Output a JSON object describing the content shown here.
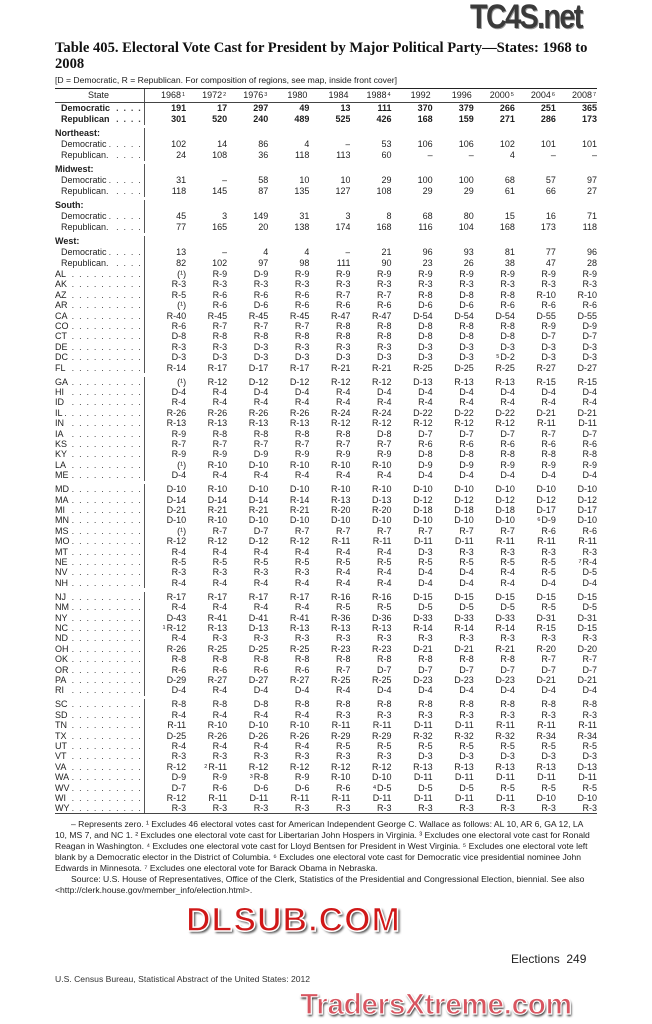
{
  "title": "Table 405. Electoral Vote Cast for President by Major Political Party—States: 1968 to 2008",
  "subtitle": "[D = Democratic, R = Republican. For composition of regions, see map, inside front cover]",
  "header": {
    "state_label": "State",
    "years": [
      {
        "year": "1968",
        "fn": "1"
      },
      {
        "year": "1972",
        "fn": "2"
      },
      {
        "year": "1976",
        "fn": "3"
      },
      {
        "year": "1980",
        "fn": ""
      },
      {
        "year": "1984",
        "fn": ""
      },
      {
        "year": "1988",
        "fn": "4"
      },
      {
        "year": "1992",
        "fn": ""
      },
      {
        "year": "1996",
        "fn": ""
      },
      {
        "year": "2000",
        "fn": "5"
      },
      {
        "year": "2004",
        "fn": "6"
      },
      {
        "year": "2008",
        "fn": "7"
      }
    ]
  },
  "totals": [
    {
      "label": "Democratic",
      "values": [
        "191",
        "17",
        "297",
        "49",
        "13",
        "111",
        "370",
        "379",
        "266",
        "251",
        "365"
      ]
    },
    {
      "label": "Republican",
      "values": [
        "301",
        "520",
        "240",
        "489",
        "525",
        "426",
        "168",
        "159",
        "271",
        "286",
        "173"
      ]
    }
  ],
  "regions": [
    {
      "name": "Northeast:",
      "rows": [
        {
          "label": "Democratic",
          "values": [
            "102",
            "14",
            "86",
            "4",
            "–",
            "53",
            "106",
            "106",
            "102",
            "101",
            "101"
          ]
        },
        {
          "label": "Republican.",
          "values": [
            "24",
            "108",
            "36",
            "118",
            "113",
            "60",
            "–",
            "–",
            "4",
            "–",
            "–"
          ]
        }
      ]
    },
    {
      "name": "Midwest:",
      "rows": [
        {
          "label": "Democratic",
          "values": [
            "31",
            "–",
            "58",
            "10",
            "10",
            "29",
            "100",
            "100",
            "68",
            "57",
            "97"
          ]
        },
        {
          "label": "Republican.",
          "values": [
            "118",
            "145",
            "87",
            "135",
            "127",
            "108",
            "29",
            "29",
            "61",
            "66",
            "27"
          ]
        }
      ]
    },
    {
      "name": "South:",
      "rows": [
        {
          "label": "Democratic",
          "values": [
            "45",
            "3",
            "149",
            "31",
            "3",
            "8",
            "68",
            "80",
            "15",
            "16",
            "71"
          ]
        },
        {
          "label": "Republican.",
          "values": [
            "77",
            "165",
            "20",
            "138",
            "174",
            "168",
            "116",
            "104",
            "168",
            "173",
            "118"
          ]
        }
      ]
    },
    {
      "name": "West:",
      "rows": [
        {
          "label": "Democratic",
          "values": [
            "13",
            "–",
            "4",
            "4",
            "–",
            "21",
            "96",
            "93",
            "81",
            "77",
            "96"
          ]
        },
        {
          "label": "Republican.",
          "values": [
            "82",
            "102",
            "97",
            "98",
            "111",
            "90",
            "23",
            "26",
            "38",
            "47",
            "28"
          ]
        }
      ]
    }
  ],
  "state_groups": [
    [
      {
        "state": "AL",
        "values": [
          "(¹)",
          "R-9",
          "D-9",
          "R-9",
          "R-9",
          "R-9",
          "R-9",
          "R-9",
          "R-9",
          "R-9",
          "R-9"
        ]
      },
      {
        "state": "AK",
        "values": [
          "R-3",
          "R-3",
          "R-3",
          "R-3",
          "R-3",
          "R-3",
          "R-3",
          "R-3",
          "R-3",
          "R-3",
          "R-3"
        ]
      },
      {
        "state": "AZ",
        "values": [
          "R-5",
          "R-6",
          "R-6",
          "R-6",
          "R-7",
          "R-7",
          "R-8",
          "D-8",
          "R-8",
          "R-10",
          "R-10"
        ]
      },
      {
        "state": "AR",
        "values": [
          "(¹)",
          "R-6",
          "D-6",
          "R-6",
          "R-6",
          "R-6",
          "D-6",
          "D-6",
          "R-6",
          "R-6",
          "R-6"
        ]
      },
      {
        "state": "CA",
        "values": [
          "R-40",
          "R-45",
          "R-45",
          "R-45",
          "R-47",
          "R-47",
          "D-54",
          "D-54",
          "D-54",
          "D-55",
          "D-55"
        ]
      },
      {
        "state": "CO",
        "values": [
          "R-6",
          "R-7",
          "R-7",
          "R-7",
          "R-8",
          "R-8",
          "D-8",
          "R-8",
          "R-8",
          "R-9",
          "D-9"
        ]
      },
      {
        "state": "CT",
        "values": [
          "D-8",
          "R-8",
          "R-8",
          "R-8",
          "R-8",
          "R-8",
          "D-8",
          "D-8",
          "D-8",
          "D-7",
          "D-7"
        ]
      },
      {
        "state": "DE",
        "values": [
          "R-3",
          "R-3",
          "D-3",
          "R-3",
          "R-3",
          "R-3",
          "D-3",
          "D-3",
          "D-3",
          "D-3",
          "D-3"
        ]
      },
      {
        "state": "DC",
        "values": [
          "D-3",
          "D-3",
          "D-3",
          "D-3",
          "D-3",
          "D-3",
          "D-3",
          "D-3",
          {
            "fn": "5",
            "value": "D-2"
          },
          "D-3",
          "D-3"
        ]
      },
      {
        "state": "FL",
        "values": [
          "R-14",
          "R-17",
          "D-17",
          "R-17",
          "R-21",
          "R-21",
          "R-25",
          "D-25",
          "R-25",
          "R-27",
          "D-27"
        ]
      }
    ],
    [
      {
        "state": "GA",
        "values": [
          "(¹)",
          "R-12",
          "D-12",
          "D-12",
          "R-12",
          "R-12",
          "D-13",
          "R-13",
          "R-13",
          "R-15",
          "R-15"
        ]
      },
      {
        "state": "HI",
        "values": [
          "D-4",
          "R-4",
          "D-4",
          "D-4",
          "R-4",
          "D-4",
          "D-4",
          "D-4",
          "D-4",
          "D-4",
          "D-4"
        ]
      },
      {
        "state": "ID",
        "values": [
          "R-4",
          "R-4",
          "R-4",
          "R-4",
          "R-4",
          "R-4",
          "R-4",
          "R-4",
          "R-4",
          "R-4",
          "R-4"
        ]
      },
      {
        "state": "IL",
        "values": [
          "R-26",
          "R-26",
          "R-26",
          "R-26",
          "R-24",
          "R-24",
          "D-22",
          "D-22",
          "D-22",
          "D-21",
          "D-21"
        ]
      },
      {
        "state": "IN",
        "values": [
          "R-13",
          "R-13",
          "R-13",
          "R-13",
          "R-12",
          "R-12",
          "R-12",
          "R-12",
          "R-12",
          "R-11",
          "D-11"
        ]
      },
      {
        "state": "IA",
        "values": [
          "R-9",
          "R-8",
          "R-8",
          "R-8",
          "R-8",
          "D-8",
          "D-7",
          "D-7",
          "D-7",
          "R-7",
          "D-7"
        ]
      },
      {
        "state": "KS",
        "values": [
          "R-7",
          "R-7",
          "R-7",
          "R-7",
          "R-7",
          "R-7",
          "R-6",
          "R-6",
          "R-6",
          "R-6",
          "R-6"
        ]
      },
      {
        "state": "KY",
        "values": [
          "R-9",
          "R-9",
          "D-9",
          "R-9",
          "R-9",
          "R-9",
          "D-8",
          "D-8",
          "R-8",
          "R-8",
          "R-8"
        ]
      },
      {
        "state": "LA",
        "values": [
          "(¹)",
          "R-10",
          "D-10",
          "R-10",
          "R-10",
          "R-10",
          "D-9",
          "D-9",
          "R-9",
          "R-9",
          "R-9"
        ]
      },
      {
        "state": "ME",
        "values": [
          "D-4",
          "R-4",
          "R-4",
          "R-4",
          "R-4",
          "R-4",
          "D-4",
          "D-4",
          "D-4",
          "D-4",
          "D-4"
        ]
      }
    ],
    [
      {
        "state": "MD",
        "values": [
          "D-10",
          "R-10",
          "D-10",
          "D-10",
          "R-10",
          "R-10",
          "D-10",
          "D-10",
          "D-10",
          "D-10",
          "D-10"
        ]
      },
      {
        "state": "MA",
        "values": [
          "D-14",
          "D-14",
          "D-14",
          "R-14",
          "R-13",
          "D-13",
          "D-12",
          "D-12",
          "D-12",
          "D-12",
          "D-12"
        ]
      },
      {
        "state": "MI",
        "values": [
          "D-21",
          "R-21",
          "R-21",
          "R-21",
          "R-20",
          "R-20",
          "D-18",
          "D-18",
          "D-18",
          "D-17",
          "D-17"
        ]
      },
      {
        "state": "MN",
        "values": [
          "D-10",
          "R-10",
          "D-10",
          "D-10",
          "D-10",
          "D-10",
          "D-10",
          "D-10",
          "D-10",
          {
            "fn": "6",
            "value": "D-9"
          },
          "D-10"
        ]
      },
      {
        "state": "MS",
        "values": [
          "(¹)",
          "R-7",
          "D-7",
          "R-7",
          "R-7",
          "R-7",
          "R-7",
          "R-7",
          "R-7",
          "R-6",
          "R-6"
        ]
      },
      {
        "state": "MO",
        "values": [
          "R-12",
          "R-12",
          "D-12",
          "R-12",
          "R-11",
          "R-11",
          "D-11",
          "D-11",
          "R-11",
          "R-11",
          "R-11"
        ]
      },
      {
        "state": "MT",
        "values": [
          "R-4",
          "R-4",
          "R-4",
          "R-4",
          "R-4",
          "R-4",
          "D-3",
          "R-3",
          "R-3",
          "R-3",
          "R-3"
        ]
      },
      {
        "state": "NE",
        "values": [
          "R-5",
          "R-5",
          "R-5",
          "R-5",
          "R-5",
          "R-5",
          "R-5",
          "R-5",
          "R-5",
          "R-5",
          {
            "fn": "7",
            "value": "R-4"
          }
        ]
      },
      {
        "state": "NV",
        "values": [
          "R-3",
          "R-3",
          "R-3",
          "R-3",
          "R-4",
          "R-4",
          "D-4",
          "D-4",
          "R-4",
          "R-5",
          "D-5"
        ]
      },
      {
        "state": "NH",
        "values": [
          "R-4",
          "R-4",
          "R-4",
          "R-4",
          "R-4",
          "R-4",
          "D-4",
          "D-4",
          "R-4",
          "D-4",
          "D-4"
        ]
      }
    ],
    [
      {
        "state": "NJ",
        "values": [
          "R-17",
          "R-17",
          "R-17",
          "R-17",
          "R-16",
          "R-16",
          "D-15",
          "D-15",
          "D-15",
          "D-15",
          "D-15"
        ]
      },
      {
        "state": "NM",
        "values": [
          "R-4",
          "R-4",
          "R-4",
          "R-4",
          "R-5",
          "R-5",
          "D-5",
          "D-5",
          "D-5",
          "R-5",
          "D-5"
        ]
      },
      {
        "state": "NY",
        "values": [
          "D-43",
          "R-41",
          "D-41",
          "R-41",
          "R-36",
          "D-36",
          "D-33",
          "D-33",
          "D-33",
          "D-31",
          "D-31"
        ]
      },
      {
        "state": "NC",
        "values": [
          {
            "fn": "1",
            "value": "R-12"
          },
          "R-13",
          "D-13",
          "R-13",
          "R-13",
          "R-13",
          "R-14",
          "R-14",
          "R-14",
          "R-15",
          "D-15"
        ]
      },
      {
        "state": "ND",
        "values": [
          "R-4",
          "R-3",
          "R-3",
          "R-3",
          "R-3",
          "R-3",
          "R-3",
          "R-3",
          "R-3",
          "R-3",
          "R-3"
        ]
      },
      {
        "state": "OH",
        "values": [
          "R-26",
          "R-25",
          "D-25",
          "R-25",
          "R-23",
          "R-23",
          "D-21",
          "D-21",
          "R-21",
          "R-20",
          "D-20"
        ]
      },
      {
        "state": "OK",
        "values": [
          "R-8",
          "R-8",
          "R-8",
          "R-8",
          "R-8",
          "R-8",
          "R-8",
          "R-8",
          "R-8",
          "R-7",
          "R-7"
        ]
      },
      {
        "state": "OR",
        "values": [
          "R-6",
          "R-6",
          "R-6",
          "R-6",
          "R-7",
          "D-7",
          "D-7",
          "D-7",
          "D-7",
          "D-7",
          "D-7"
        ]
      },
      {
        "state": "PA",
        "values": [
          "D-29",
          "R-27",
          "D-27",
          "R-27",
          "R-25",
          "R-25",
          "D-23",
          "D-23",
          "D-23",
          "D-21",
          "D-21"
        ]
      },
      {
        "state": "RI",
        "values": [
          "D-4",
          "R-4",
          "D-4",
          "D-4",
          "R-4",
          "D-4",
          "D-4",
          "D-4",
          "D-4",
          "D-4",
          "D-4"
        ]
      }
    ],
    [
      {
        "state": "SC",
        "values": [
          "R-8",
          "R-8",
          "D-8",
          "R-8",
          "R-8",
          "R-8",
          "R-8",
          "R-8",
          "R-8",
          "R-8",
          "R-8"
        ]
      },
      {
        "state": "SD",
        "values": [
          "R-4",
          "R-4",
          "R-4",
          "R-4",
          "R-3",
          "R-3",
          "R-3",
          "R-3",
          "R-3",
          "R-3",
          "R-3"
        ]
      },
      {
        "state": "TN",
        "values": [
          "R-11",
          "R-10",
          "D-10",
          "R-10",
          "R-11",
          "R-11",
          "D-11",
          "D-11",
          "R-11",
          "R-11",
          "R-11"
        ]
      },
      {
        "state": "TX",
        "values": [
          "D-25",
          "R-26",
          "D-26",
          "R-26",
          "R-29",
          "R-29",
          "R-32",
          "R-32",
          "R-32",
          "R-34",
          "R-34"
        ]
      },
      {
        "state": "UT",
        "values": [
          "R-4",
          "R-4",
          "R-4",
          "R-4",
          "R-5",
          "R-5",
          "R-5",
          "R-5",
          "R-5",
          "R-5",
          "R-5"
        ]
      },
      {
        "state": "VT",
        "values": [
          "R-3",
          "R-3",
          "R-3",
          "R-3",
          "R-3",
          "R-3",
          "D-3",
          "D-3",
          "D-3",
          "D-3",
          "D-3"
        ]
      },
      {
        "state": "VA",
        "values": [
          "R-12",
          {
            "fn": "2",
            "value": "R-11"
          },
          "R-12",
          "R-12",
          "R-12",
          "R-12",
          "R-13",
          "R-13",
          "R-13",
          "R-13",
          "D-13"
        ]
      },
      {
        "state": "WA",
        "values": [
          "D-9",
          "R-9",
          {
            "fn": "3",
            "value": "R-8"
          },
          "R-9",
          "R-10",
          "D-10",
          "D-11",
          "D-11",
          "D-11",
          "D-11",
          "D-11"
        ]
      },
      {
        "state": "WV",
        "values": [
          "D-7",
          "R-6",
          "D-6",
          "D-6",
          "R-6",
          {
            "fn": "4",
            "value": "D-5"
          },
          "D-5",
          "D-5",
          "R-5",
          "R-5",
          "R-5"
        ]
      },
      {
        "state": "WI",
        "values": [
          "R-12",
          "R-11",
          "D-11",
          "R-11",
          "R-11",
          "D-11",
          "D-11",
          "D-11",
          "D-11",
          "D-10",
          "D-10"
        ]
      },
      {
        "state": "WY",
        "values": [
          "R-3",
          "R-3",
          "R-3",
          "R-3",
          "R-3",
          "R-3",
          "R-3",
          "R-3",
          "R-3",
          "R-3",
          "R-3"
        ]
      }
    ]
  ],
  "footnotes": [
    "– Represents zero. ¹ Excludes 46 electoral votes cast for American Independent George C. Wallace as follows: AL 10, AR 6, GA 12, LA 10, MS 7, and NC 1. ² Excludes one electoral vote cast for Libertarian John Hospers in Virginia. ³ Excludes one electoral vote cast for Ronald Reagan in Washington. ⁴ Excludes one electoral vote cast for Lloyd Bentsen for President in West Virginia. ⁵ Excludes one electoral vote left blank by a Democratic elector in the District of Columbia. ⁶ Excludes one electoral vote cast for Democratic vice presidential nominee John Edwards in Minnesota. ⁷ Excludes one electoral vote for Barack Obama in Nebraska.",
    "Source: U.S. House of Representatives, Office of the Clerk, Statistics of the Presidential and Congressional Election, biennial. See also <http://clerk.house.gov/member_info/election.html>."
  ],
  "page": {
    "section": "Elections",
    "number": "249"
  },
  "source_line": "U.S. Census Bureau, Statistical Abstract of the United States: 2012",
  "watermarks": [
    "TC4S.net",
    "DLSUB.COM",
    "TradersXtreme.com"
  ]
}
